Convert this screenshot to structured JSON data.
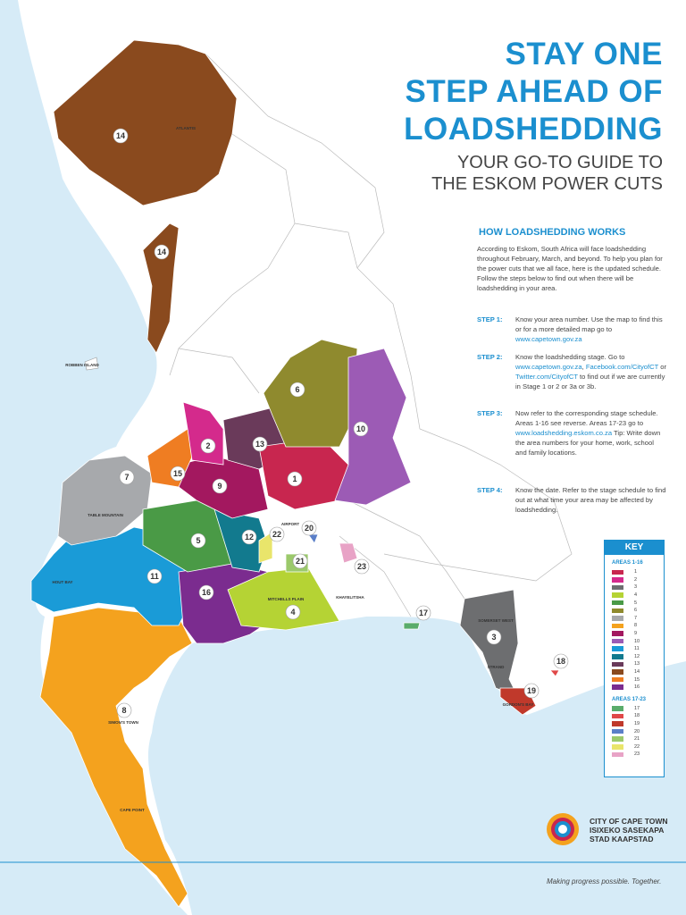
{
  "header": {
    "title_lines": [
      "STAY ONE",
      "STEP AHEAD OF",
      "LOADSHEDDING"
    ],
    "subtitle_lines": [
      "YOUR GO-TO GUIDE TO",
      "THE ESKOM POWER CUTS"
    ]
  },
  "how_it_works": {
    "heading": "HOW LOADSHEDDING WORKS",
    "intro": "According to Eskom, South Africa will face loadshedding throughout February, March, and beyond. To help you plan for the power cuts that we all face, here is the updated schedule. Follow the steps below to find out when there will be loadshedding in your area.",
    "steps": [
      {
        "label": "STEP 1:",
        "parts": [
          {
            "text": "Know your area number. Use the map to find this or for a more detailed map go to "
          },
          {
            "link": "www.capetown.gov.za"
          }
        ]
      },
      {
        "label": "STEP 2:",
        "parts": [
          {
            "text": "Know the loadshedding stage. Go to "
          },
          {
            "link": "www.capetown.gov.za"
          },
          {
            "text": ", "
          },
          {
            "link": "Facebook.com/CityofCT"
          },
          {
            "text": " or "
          },
          {
            "link": "Twitter.com/CityofCT"
          },
          {
            "text": " to find out if we are currently in Stage 1 or 2 or 3a or 3b."
          }
        ]
      },
      {
        "label": "STEP 3:",
        "parts": [
          {
            "text": "Now refer to the corresponding stage schedule. Areas 1-16 see reverse. Areas 17-23 go to "
          },
          {
            "link": "www.loadshedding.eskom.co.za"
          },
          {
            "text": " Tip: Write down the area numbers for your home, work, school and family locations."
          }
        ]
      },
      {
        "label": "STEP 4:",
        "parts": [
          {
            "text": "Know the date. Refer to the stage schedule to find out at what time your area may be affected by loadshedding."
          }
        ]
      }
    ]
  },
  "key": {
    "title": "KEY",
    "groups": [
      {
        "title": "AREAS 1-16",
        "areas": [
          {
            "number": 1,
            "color": "#c8264f"
          },
          {
            "number": 2,
            "color": "#d42a8c"
          },
          {
            "number": 3,
            "color": "#6d6e70"
          },
          {
            "number": 4,
            "color": "#b5d334"
          },
          {
            "number": 5,
            "color": "#4a9a46"
          },
          {
            "number": 6,
            "color": "#8f8a2e"
          },
          {
            "number": 7,
            "color": "#a7a9ac"
          },
          {
            "number": 8,
            "color": "#f4a21e"
          },
          {
            "number": 9,
            "color": "#a3185f"
          },
          {
            "number": 10,
            "color": "#9c5bb5"
          },
          {
            "number": 11,
            "color": "#1a9bd7"
          },
          {
            "number": 12,
            "color": "#127a8e"
          },
          {
            "number": 13,
            "color": "#6a3a5a"
          },
          {
            "number": 14,
            "color": "#8a4a1e"
          },
          {
            "number": 15,
            "color": "#ef7d22"
          },
          {
            "number": 16,
            "color": "#7b2c8f"
          }
        ]
      },
      {
        "title": "AREAS 17-23",
        "areas": [
          {
            "number": 17,
            "color": "#5aac6b"
          },
          {
            "number": 18,
            "color": "#e04848"
          },
          {
            "number": 19,
            "color": "#c0392b"
          },
          {
            "number": 20,
            "color": "#5b7fc8"
          },
          {
            "number": 21,
            "color": "#9bc96b"
          },
          {
            "number": 22,
            "color": "#e9e56b"
          },
          {
            "number": 23,
            "color": "#e8a3c6"
          }
        ]
      }
    ]
  },
  "map": {
    "places": [
      "ROBBEN ISLAND",
      "HOUT BAY",
      "CAPE POINT",
      "SIMON'S TOWN",
      "KHAYELITSHA",
      "ATLANTIS",
      "TABLE MOUNTAIN",
      "MITCHELLS PLAIN",
      "AIRPORT",
      "GORDON'S BAY",
      "STRAND",
      "SOMERSET WEST"
    ]
  },
  "footer": {
    "org_lines": [
      "CITY OF CAPE TOWN",
      "ISIXEKO SASEKAPA",
      "STAD KAAPSTAD"
    ],
    "tagline": "Making progress possible. Together."
  }
}
